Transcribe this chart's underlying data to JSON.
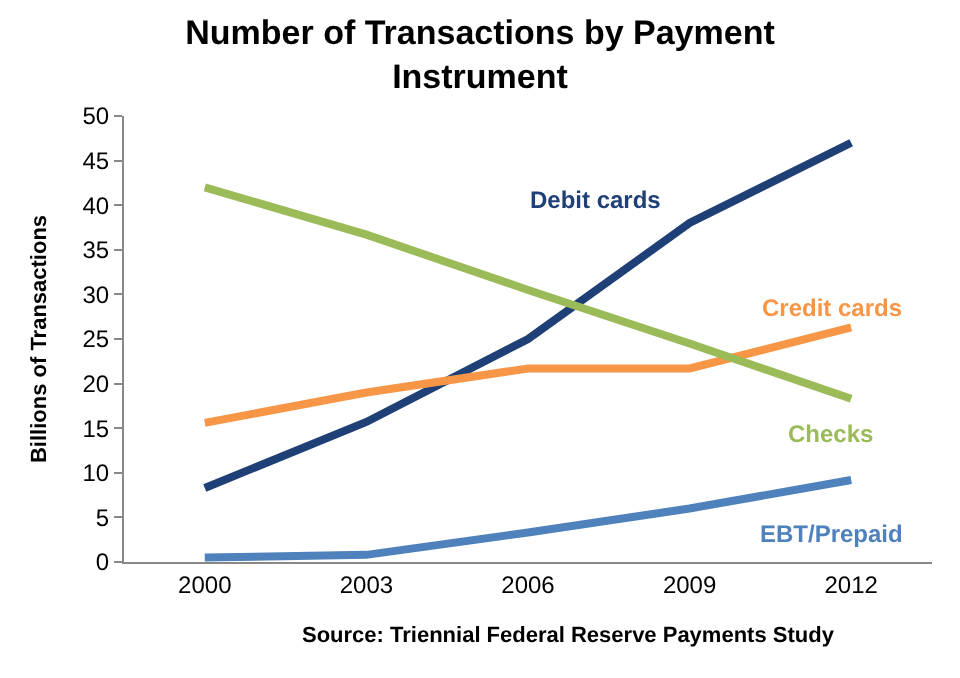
{
  "chart_data": {
    "type": "line",
    "title": "Number of Transactions by Payment Instrument",
    "ylabel": "Billions of Transactions",
    "categories": [
      "2000",
      "2003",
      "2006",
      "2009",
      "2012"
    ],
    "series": [
      {
        "name": "Debit cards",
        "color": "#1f3f77",
        "values": [
          8.3,
          15.7,
          25,
          38,
          47
        ]
      },
      {
        "name": "Credit cards",
        "color": "#f79646",
        "values": [
          15.6,
          19,
          21.7,
          21.7,
          26.3
        ]
      },
      {
        "name": "Checks",
        "color": "#9bbb59",
        "values": [
          42,
          36.7,
          30.5,
          24.5,
          18.3
        ]
      },
      {
        "name": "EBT/Prepaid",
        "color": "#4f81bd",
        "values": [
          0.5,
          0.8,
          3.3,
          6,
          9.2
        ]
      }
    ],
    "ylim": [
      0,
      50
    ],
    "yticks": [
      0,
      5,
      10,
      15,
      20,
      25,
      30,
      35,
      40,
      45,
      50
    ],
    "legend": false,
    "marker": "none",
    "line_style": "solid",
    "annotations": [
      "Source: Triennial Federal Reserve Payments Study"
    ]
  }
}
